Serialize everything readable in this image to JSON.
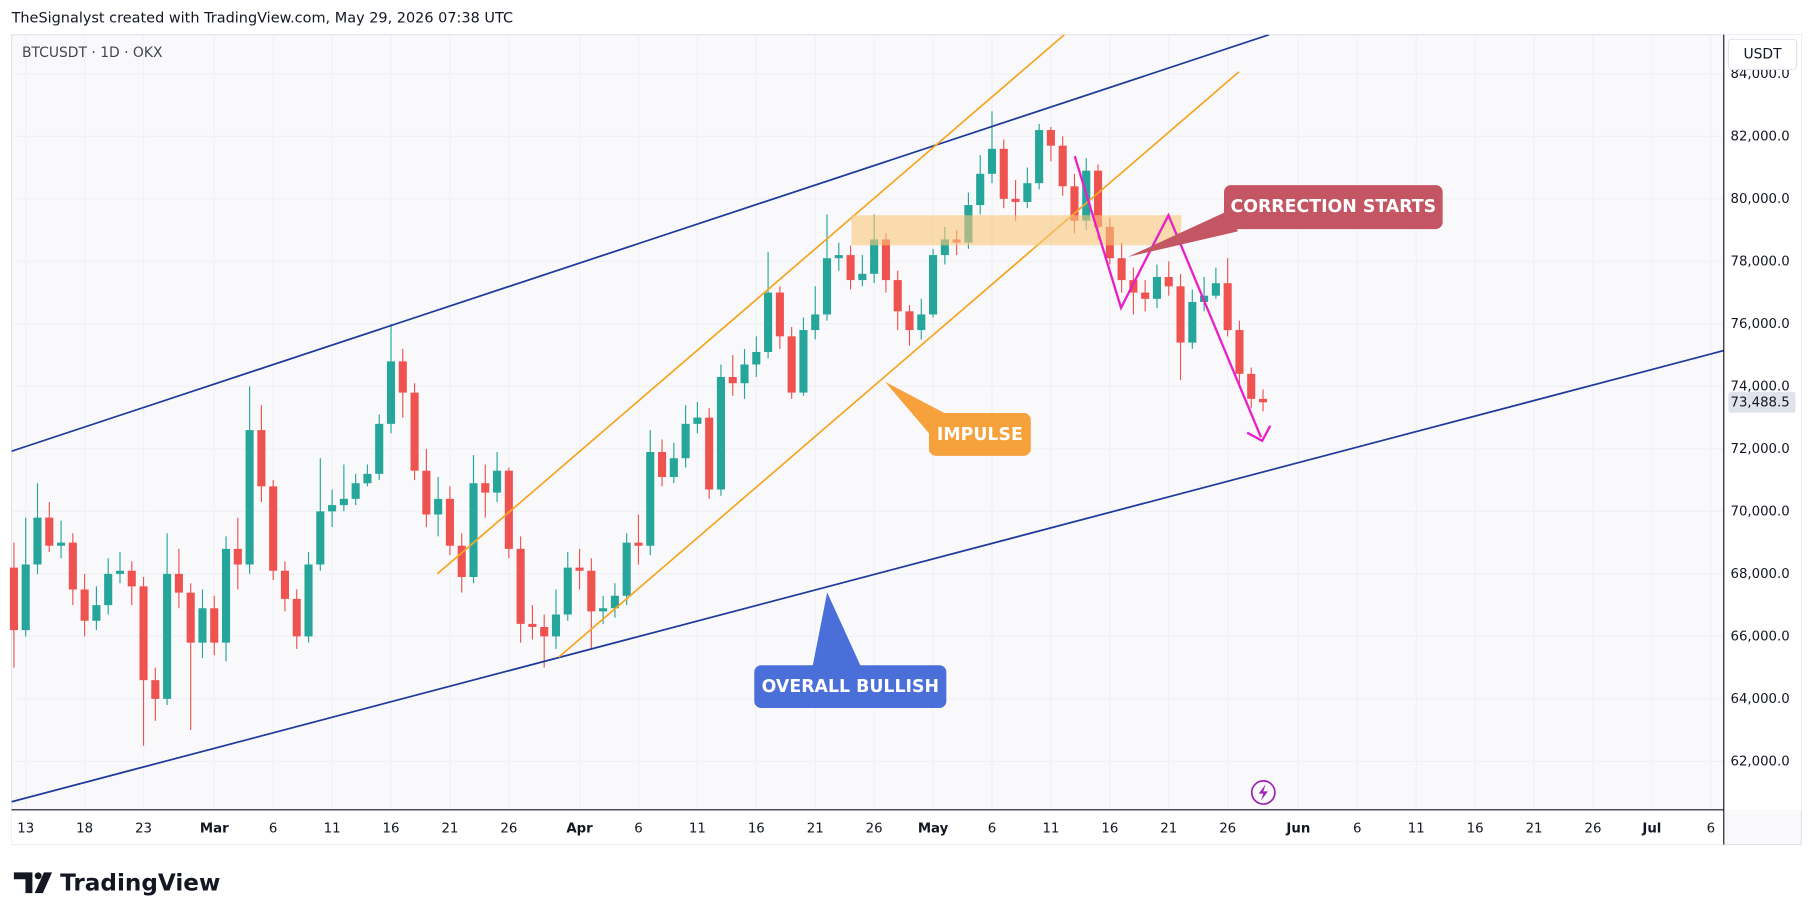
{
  "header": {
    "attribution": "TheSignalyst created with TradingView.com, May 29, 2026 07:38 UTC",
    "symbol": "BTCUSDT · 1D · OKX",
    "currency": "USDT",
    "brand": "TradingView"
  },
  "chart_data": {
    "type": "candlestick",
    "x": [
      43,
      44,
      45,
      46,
      47,
      48,
      49,
      50,
      51,
      52,
      53,
      54,
      55,
      56,
      57,
      58,
      59,
      60,
      61,
      62,
      63,
      64,
      65,
      66,
      67,
      68,
      69,
      70,
      71,
      72,
      73,
      74,
      75,
      76,
      77,
      78,
      79,
      80,
      81,
      82,
      83,
      84,
      85,
      86,
      87,
      88,
      89,
      90,
      91,
      92,
      93,
      94,
      95,
      96,
      97,
      98,
      99,
      100,
      101,
      102,
      103,
      104,
      105,
      106,
      107,
      108,
      109,
      110,
      111,
      112,
      113,
      114,
      115,
      116,
      117,
      118,
      119,
      120,
      121,
      122,
      123,
      124,
      125,
      126,
      127,
      128,
      129,
      130,
      131,
      132,
      133,
      134,
      135,
      136,
      137,
      138,
      139,
      140,
      141,
      142,
      143,
      144,
      145,
      146,
      147,
      148,
      149
    ],
    "open": [
      68200,
      66200,
      68300,
      69800,
      68900,
      69000,
      67500,
      66500,
      67000,
      68000,
      68100,
      67600,
      64600,
      64000,
      68000,
      67400,
      65800,
      66900,
      65800,
      68800,
      68300,
      72600,
      70800,
      68100,
      67200,
      66000,
      68300,
      70000,
      70200,
      70400,
      70900,
      71200,
      72800,
      74800,
      73800,
      71300,
      69900,
      70400,
      68900,
      67900,
      70900,
      70600,
      71300,
      68800,
      66400,
      66300,
      66000,
      66700,
      68200,
      68100,
      66800,
      66900,
      67300,
      69000,
      68900,
      71900,
      71100,
      71700,
      72800,
      73000,
      70700,
      74300,
      74100,
      74700,
      75100,
      77000,
      75600,
      73800,
      75800,
      76300,
      78100,
      78200,
      77400,
      77600,
      78700,
      77400,
      76400,
      75800,
      76300,
      78200,
      78700,
      78600,
      79800,
      80800,
      81600,
      80000,
      79900,
      80500,
      82200,
      81700,
      80400,
      79300,
      80900,
      79100,
      78100,
      77400,
      77000,
      76800,
      77500,
      77200,
      75400,
      76700,
      76900,
      77300,
      75800,
      74400,
      73600
    ],
    "high": [
      69000,
      69800,
      70900,
      70300,
      69700,
      69300,
      68000,
      67600,
      68500,
      68700,
      68400,
      67900,
      65000,
      69300,
      68800,
      67700,
      67500,
      67300,
      69200,
      69800,
      74000,
      73400,
      71000,
      68400,
      67500,
      68700,
      71700,
      70700,
      71500,
      71200,
      71500,
      73100,
      76000,
      75200,
      74100,
      72000,
      71100,
      70800,
      69300,
      71800,
      71500,
      71900,
      71400,
      69200,
      67000,
      66700,
      67500,
      68700,
      68800,
      68500,
      67300,
      67700,
      69300,
      69900,
      72600,
      72300,
      72200,
      73400,
      73500,
      73300,
      74700,
      75000,
      75200,
      75600,
      78300,
      77200,
      75900,
      76200,
      77200,
      79500,
      78600,
      78500,
      78200,
      79500,
      78900,
      77700,
      76600,
      76800,
      78400,
      79100,
      79000,
      80200,
      81400,
      82800,
      81900,
      80600,
      81000,
      82400,
      82300,
      82000,
      80800,
      81300,
      81100,
      79400,
      78600,
      77800,
      77400,
      77900,
      78000,
      77600,
      77100,
      77500,
      77800,
      78100,
      76100,
      74600,
      73900
    ],
    "low": [
      65000,
      66000,
      68000,
      68700,
      68500,
      67000,
      66000,
      66200,
      66700,
      67700,
      67000,
      62500,
      63300,
      63800,
      66900,
      63000,
      65300,
      65400,
      65200,
      67500,
      68000,
      70300,
      67800,
      66800,
      65600,
      65800,
      68100,
      69500,
      70000,
      70200,
      70800,
      71000,
      72500,
      73000,
      71000,
      69500,
      69200,
      68600,
      67400,
      67700,
      69800,
      70300,
      68500,
      65800,
      65900,
      65000,
      65600,
      66500,
      67500,
      65600,
      66400,
      66600,
      67000,
      68300,
      68600,
      70800,
      70900,
      71400,
      72500,
      70400,
      70500,
      73700,
      73600,
      74300,
      74900,
      75200,
      73600,
      73700,
      75500,
      76100,
      77700,
      77100,
      77200,
      77300,
      77000,
      75800,
      75300,
      75500,
      76200,
      77900,
      78200,
      78400,
      79500,
      80500,
      79700,
      79300,
      79700,
      80300,
      81200,
      80100,
      78900,
      79000,
      78700,
      77900,
      77000,
      76300,
      76400,
      76500,
      76900,
      74200,
      75200,
      76400,
      76800,
      75600,
      74100,
      73300,
      73200
    ],
    "close": [
      66200,
      68300,
      69800,
      68900,
      69000,
      67500,
      66500,
      67000,
      68000,
      68100,
      67600,
      64600,
      64000,
      68000,
      67400,
      65800,
      66900,
      65800,
      68800,
      68300,
      72600,
      70800,
      68100,
      67200,
      66000,
      68300,
      70000,
      70200,
      70400,
      70900,
      71200,
      72800,
      74800,
      73800,
      71300,
      69900,
      70400,
      68900,
      67900,
      70900,
      70600,
      71300,
      68800,
      66400,
      66300,
      66000,
      66700,
      68200,
      68100,
      66800,
      66900,
      67300,
      69000,
      68900,
      71900,
      71100,
      71700,
      72800,
      73000,
      70700,
      74300,
      74100,
      74700,
      75100,
      77000,
      75600,
      73800,
      75800,
      76300,
      78100,
      78200,
      77400,
      77600,
      78700,
      77400,
      76400,
      75800,
      76300,
      78200,
      78700,
      78600,
      79800,
      80800,
      81600,
      80000,
      79900,
      80500,
      82200,
      81700,
      80400,
      79300,
      80900,
      79100,
      78100,
      77400,
      77000,
      76800,
      77500,
      77200,
      75400,
      76700,
      76900,
      77300,
      75800,
      74400,
      73600,
      73488.5
    ],
    "up_color": "#26a69a",
    "down_color": "#ef5350",
    "xlim": [
      42.8,
      188.1
    ],
    "ylim": [
      60450,
      85250
    ],
    "xticks": [
      {
        "value": 44,
        "label": "13"
      },
      {
        "value": 49,
        "label": "18"
      },
      {
        "value": 54,
        "label": "23"
      },
      {
        "value": 60,
        "label": "Mar"
      },
      {
        "value": 65,
        "label": "6"
      },
      {
        "value": 70,
        "label": "11"
      },
      {
        "value": 75,
        "label": "16"
      },
      {
        "value": 80,
        "label": "21"
      },
      {
        "value": 85,
        "label": "26"
      },
      {
        "value": 91,
        "label": "Apr"
      },
      {
        "value": 96,
        "label": "6"
      },
      {
        "value": 101,
        "label": "11"
      },
      {
        "value": 106,
        "label": "16"
      },
      {
        "value": 111,
        "label": "21"
      },
      {
        "value": 116,
        "label": "26"
      },
      {
        "value": 121,
        "label": "May"
      },
      {
        "value": 126,
        "label": "6"
      },
      {
        "value": 131,
        "label": "11"
      },
      {
        "value": 136,
        "label": "16"
      },
      {
        "value": 141,
        "label": "21"
      },
      {
        "value": 146,
        "label": "26"
      },
      {
        "value": 152,
        "label": "Jun"
      },
      {
        "value": 157,
        "label": "6"
      },
      {
        "value": 162,
        "label": "11"
      },
      {
        "value": 167,
        "label": "16"
      },
      {
        "value": 172,
        "label": "21"
      },
      {
        "value": 177,
        "label": "26"
      },
      {
        "value": 182,
        "label": "Jul"
      },
      {
        "value": 187,
        "label": "6"
      }
    ],
    "yticks": [
      {
        "value": 62000,
        "label": "62,000.0"
      },
      {
        "value": 64000,
        "label": "64,000.0"
      },
      {
        "value": 66000,
        "label": "66,000.0"
      },
      {
        "value": 68000,
        "label": "68,000.0"
      },
      {
        "value": 70000,
        "label": "70,000.0"
      },
      {
        "value": 72000,
        "label": "72,000.0"
      },
      {
        "value": 74000,
        "label": "74,000.0"
      },
      {
        "value": 76000,
        "label": "76,000.0"
      },
      {
        "value": 78000,
        "label": "78,000.0"
      },
      {
        "value": 80000,
        "label": "80,000.0"
      },
      {
        "value": 82000,
        "label": "82,000.0"
      },
      {
        "value": 84000,
        "label": "84,000.0"
      }
    ],
    "last_price_label": "73,488.5",
    "annotations": [
      "CORRECTION STARTS",
      "IMPULSE",
      "OVERALL BULLISH"
    ]
  }
}
